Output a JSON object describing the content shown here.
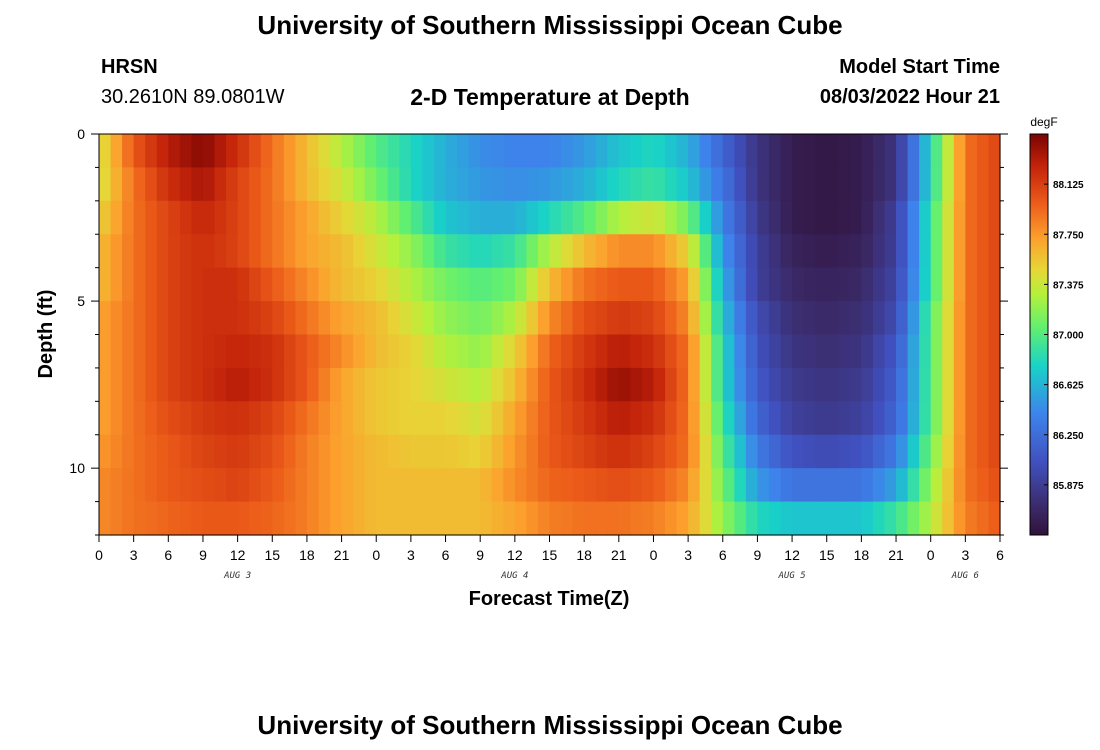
{
  "header": {
    "title": "University of Southern Mississippi Ocean Cube",
    "station_code": "HRSN",
    "station_coords": "30.2610N  89.0801W",
    "chart_title": "2-D Temperature at Depth",
    "model_start_label": "Model Start Time",
    "model_start_value": "08/03/2022 Hour 21"
  },
  "footer": {
    "title": "University of Southern Mississippi Ocean Cube"
  },
  "chart_data": {
    "type": "heatmap",
    "title": "2-D Temperature at Depth",
    "xlabel": "Forecast Time(Z)",
    "ylabel": "Depth (ft)",
    "x_hours_range": [
      0,
      78
    ],
    "y_depth_range": [
      0,
      12
    ],
    "x_tick_labels": [
      "0",
      "3",
      "6",
      "9",
      "12",
      "15",
      "18",
      "21",
      "0",
      "3",
      "6",
      "9",
      "12",
      "15",
      "18",
      "21",
      "0",
      "3",
      "6",
      "9",
      "12",
      "15",
      "18",
      "21",
      "0",
      "3",
      "6"
    ],
    "x_tick_hours": [
      0,
      3,
      6,
      9,
      12,
      15,
      18,
      21,
      24,
      27,
      30,
      33,
      36,
      39,
      42,
      45,
      48,
      51,
      54,
      57,
      60,
      63,
      66,
      69,
      72,
      75,
      78
    ],
    "day_labels": [
      {
        "label": "AUG 3",
        "hour": 12
      },
      {
        "label": "AUG 4",
        "hour": 36
      },
      {
        "label": "AUG 5",
        "hour": 60
      },
      {
        "label": "AUG 6",
        "hour": 75
      }
    ],
    "y_tick_labels": [
      "0",
      "5",
      "10"
    ],
    "y_tick_values": [
      0,
      5,
      10
    ],
    "colorbar": {
      "unit": "degF",
      "min": 85.5,
      "max": 88.5,
      "tick_labels": [
        "88.125",
        "87.750",
        "87.375",
        "87.000",
        "86.625",
        "86.250",
        "85.875"
      ],
      "tick_values": [
        88.125,
        87.75,
        87.375,
        87.0,
        86.625,
        86.25,
        85.875
      ]
    },
    "grid": {
      "n_time": 78,
      "n_depth": 12,
      "depth_levels": [
        0.5,
        1.5,
        2.5,
        3.5,
        4.5,
        5.5,
        6.5,
        7.5,
        8.5,
        9.5,
        10.5,
        11.5
      ],
      "knot_hours": [
        0,
        3,
        6,
        9,
        12,
        15,
        18,
        21,
        24,
        27,
        30,
        33,
        36,
        39,
        42,
        45,
        48,
        51,
        54,
        57,
        60,
        63,
        66,
        69,
        72,
        75,
        78
      ],
      "temps_degF": [
        [
          87.4,
          88.0,
          88.3,
          88.45,
          88.2,
          87.9,
          87.6,
          87.3,
          87.0,
          86.8,
          86.6,
          86.45,
          86.4,
          86.4,
          86.5,
          86.7,
          86.8,
          86.6,
          86.2,
          85.8,
          85.6,
          85.55,
          85.6,
          85.8,
          86.8,
          87.9,
          88.1
        ],
        [
          87.4,
          87.9,
          88.2,
          88.35,
          88.1,
          87.9,
          87.6,
          87.4,
          87.1,
          86.8,
          86.6,
          86.5,
          86.45,
          86.5,
          86.6,
          86.8,
          86.9,
          86.7,
          86.3,
          85.8,
          85.6,
          85.55,
          85.6,
          85.8,
          86.8,
          87.9,
          88.1
        ],
        [
          87.5,
          87.9,
          88.1,
          88.25,
          88.1,
          87.9,
          87.7,
          87.5,
          87.3,
          87.0,
          86.7,
          86.6,
          86.6,
          86.8,
          87.0,
          87.3,
          87.4,
          87.1,
          86.4,
          85.85,
          85.6,
          85.55,
          85.6,
          85.9,
          86.9,
          87.9,
          88.1
        ],
        [
          87.6,
          87.9,
          88.1,
          88.2,
          88.1,
          87.9,
          87.7,
          87.6,
          87.4,
          87.2,
          86.9,
          86.8,
          86.9,
          87.3,
          87.6,
          87.8,
          87.8,
          87.5,
          86.5,
          85.9,
          85.65,
          85.6,
          85.65,
          85.9,
          86.9,
          87.9,
          88.1
        ],
        [
          87.6,
          87.9,
          88.1,
          88.2,
          88.2,
          88.0,
          87.8,
          87.6,
          87.5,
          87.3,
          87.1,
          87.0,
          87.1,
          87.6,
          87.9,
          88.0,
          88.0,
          87.7,
          86.6,
          85.9,
          85.7,
          85.65,
          85.7,
          85.95,
          86.9,
          87.9,
          88.1
        ],
        [
          87.7,
          87.9,
          88.1,
          88.2,
          88.2,
          88.1,
          87.9,
          87.7,
          87.6,
          87.4,
          87.2,
          87.1,
          87.3,
          87.8,
          88.05,
          88.15,
          88.1,
          87.8,
          86.7,
          86.0,
          85.75,
          85.7,
          85.75,
          86.0,
          87.0,
          87.9,
          88.1
        ],
        [
          87.7,
          87.9,
          88.1,
          88.2,
          88.25,
          88.2,
          88.0,
          87.8,
          87.6,
          87.5,
          87.3,
          87.2,
          87.5,
          87.95,
          88.15,
          88.3,
          88.2,
          87.9,
          86.8,
          86.05,
          85.8,
          85.75,
          85.8,
          86.1,
          87.0,
          87.9,
          88.1
        ],
        [
          87.7,
          87.9,
          88.1,
          88.2,
          88.3,
          88.2,
          88.0,
          87.7,
          87.55,
          87.5,
          87.4,
          87.3,
          87.6,
          88.0,
          88.2,
          88.4,
          88.3,
          87.9,
          86.8,
          86.1,
          85.85,
          85.8,
          85.85,
          86.15,
          87.0,
          87.9,
          88.1
        ],
        [
          87.7,
          87.9,
          88.05,
          88.15,
          88.2,
          88.1,
          87.9,
          87.7,
          87.55,
          87.5,
          87.5,
          87.4,
          87.7,
          88.0,
          88.15,
          88.3,
          88.2,
          87.9,
          86.9,
          86.2,
          85.9,
          85.85,
          85.9,
          86.2,
          87.0,
          87.9,
          88.1
        ],
        [
          87.75,
          87.9,
          88.0,
          88.1,
          88.15,
          88.05,
          87.85,
          87.7,
          87.6,
          87.55,
          87.55,
          87.5,
          87.75,
          88.0,
          88.1,
          88.2,
          88.1,
          87.9,
          87.0,
          86.35,
          86.05,
          86.0,
          86.05,
          86.35,
          87.1,
          87.9,
          88.1
        ],
        [
          87.8,
          87.9,
          88.0,
          88.05,
          88.1,
          88.0,
          87.85,
          87.7,
          87.6,
          87.6,
          87.6,
          87.6,
          87.8,
          87.95,
          88.0,
          88.05,
          88.0,
          87.8,
          87.1,
          86.5,
          86.3,
          86.3,
          86.3,
          86.55,
          87.2,
          87.9,
          88.05
        ],
        [
          87.8,
          87.9,
          87.95,
          88.0,
          88.0,
          87.95,
          87.85,
          87.7,
          87.6,
          87.6,
          87.6,
          87.6,
          87.7,
          87.85,
          87.9,
          87.9,
          87.85,
          87.7,
          87.2,
          86.8,
          86.7,
          86.7,
          86.7,
          86.9,
          87.3,
          87.85,
          88.0
        ]
      ]
    }
  }
}
